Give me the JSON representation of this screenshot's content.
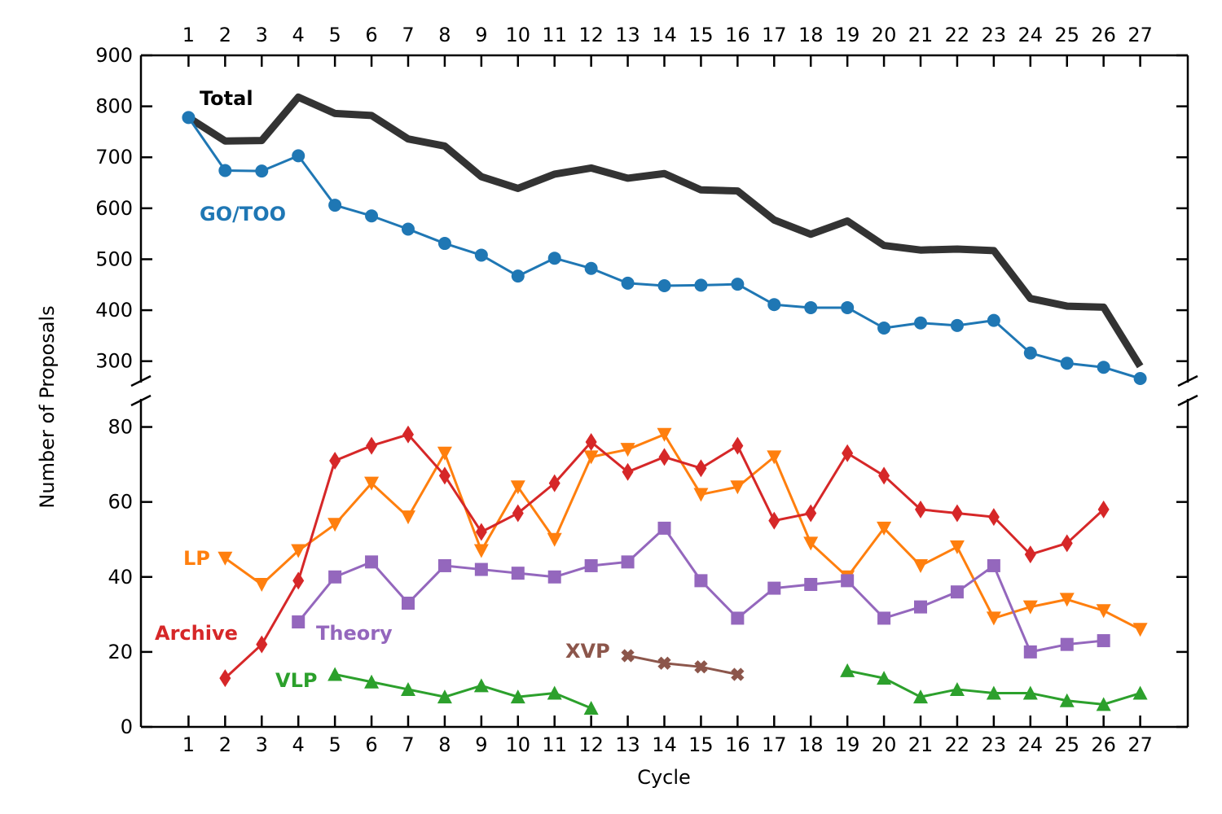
{
  "chart_data": {
    "type": "line",
    "title": "",
    "xlabel": "Cycle",
    "ylabel": "Number of Proposals",
    "x": [
      1,
      2,
      3,
      4,
      5,
      6,
      7,
      8,
      9,
      10,
      11,
      12,
      13,
      14,
      15,
      16,
      17,
      18,
      19,
      20,
      21,
      22,
      23,
      24,
      25,
      26,
      27
    ],
    "xlim": [
      -0.3,
      28.3
    ],
    "broken_y_axis": true,
    "top_panel": {
      "ylim": [
        258,
        900
      ],
      "yticks": [
        300,
        400,
        500,
        600,
        700,
        800,
        900
      ]
    },
    "bottom_panel": {
      "ylim": [
        0,
        87.5
      ],
      "yticks": [
        0,
        20,
        40,
        60,
        80
      ]
    },
    "series": [
      {
        "name": "Total",
        "panel": "top",
        "color": "#333333",
        "marker": "none",
        "values": [
          778,
          732,
          733,
          818,
          786,
          782,
          736,
          722,
          662,
          639,
          667,
          679,
          659,
          668,
          636,
          634,
          577,
          549,
          575,
          527,
          518,
          520,
          517,
          423,
          408,
          406,
          290
        ]
      },
      {
        "name": "GO/TOO",
        "panel": "top",
        "color": "#1f77b4",
        "marker": "circle",
        "values": [
          778,
          674,
          673,
          703,
          606,
          585,
          559,
          531,
          508,
          467,
          502,
          482,
          453,
          448,
          449,
          451,
          411,
          405,
          405,
          365,
          375,
          370,
          380,
          316,
          296,
          288,
          266
        ]
      },
      {
        "name": "LP",
        "panel": "bottom",
        "color": "#ff7f0e",
        "marker": "triangle-down",
        "values": [
          null,
          45,
          38,
          47,
          54,
          65,
          56,
          73,
          47,
          64,
          50,
          72,
          74,
          78,
          62,
          64,
          72,
          49,
          40,
          53,
          43,
          48,
          29,
          32,
          34,
          31,
          26
        ]
      },
      {
        "name": "Archive",
        "panel": "bottom",
        "color": "#d62728",
        "marker": "thin-diamond",
        "values": [
          null,
          13,
          22,
          39,
          71,
          75,
          78,
          67,
          52,
          57,
          65,
          76,
          68,
          72,
          69,
          75,
          55,
          57,
          73,
          67,
          58,
          57,
          56,
          46,
          49,
          58,
          null
        ]
      },
      {
        "name": "Theory",
        "panel": "bottom",
        "color": "#9467bd",
        "marker": "square",
        "values": [
          null,
          null,
          null,
          28,
          40,
          44,
          33,
          43,
          42,
          41,
          40,
          43,
          44,
          53,
          39,
          29,
          37,
          38,
          39,
          29,
          32,
          36,
          43,
          20,
          22,
          23,
          null
        ]
      },
      {
        "name": "VLP",
        "panel": "bottom",
        "color": "#2ca02c",
        "marker": "triangle-up",
        "values": [
          null,
          null,
          null,
          null,
          14,
          12,
          10,
          8,
          11,
          8,
          9,
          5,
          null,
          null,
          null,
          null,
          null,
          null,
          15,
          13,
          8,
          10,
          9,
          9,
          7,
          6,
          9
        ]
      },
      {
        "name": "XVP",
        "panel": "bottom",
        "color": "#8c564b",
        "marker": "x-filled",
        "values": [
          null,
          null,
          null,
          null,
          null,
          null,
          null,
          null,
          null,
          null,
          null,
          null,
          19,
          17,
          16,
          14,
          null,
          null,
          null,
          null,
          null,
          null,
          null,
          null,
          null,
          null,
          null
        ]
      }
    ],
    "annotations": [
      {
        "text": "Total",
        "series": "Total"
      },
      {
        "text": "GO/TOO",
        "series": "GO/TOO"
      },
      {
        "text": "LP",
        "series": "LP"
      },
      {
        "text": "Archive",
        "series": "Archive"
      },
      {
        "text": "Theory",
        "series": "Theory"
      },
      {
        "text": "VLP",
        "series": "VLP"
      },
      {
        "text": "XVP",
        "series": "XVP"
      }
    ],
    "grid": false,
    "legend": "none (inline labels)"
  }
}
